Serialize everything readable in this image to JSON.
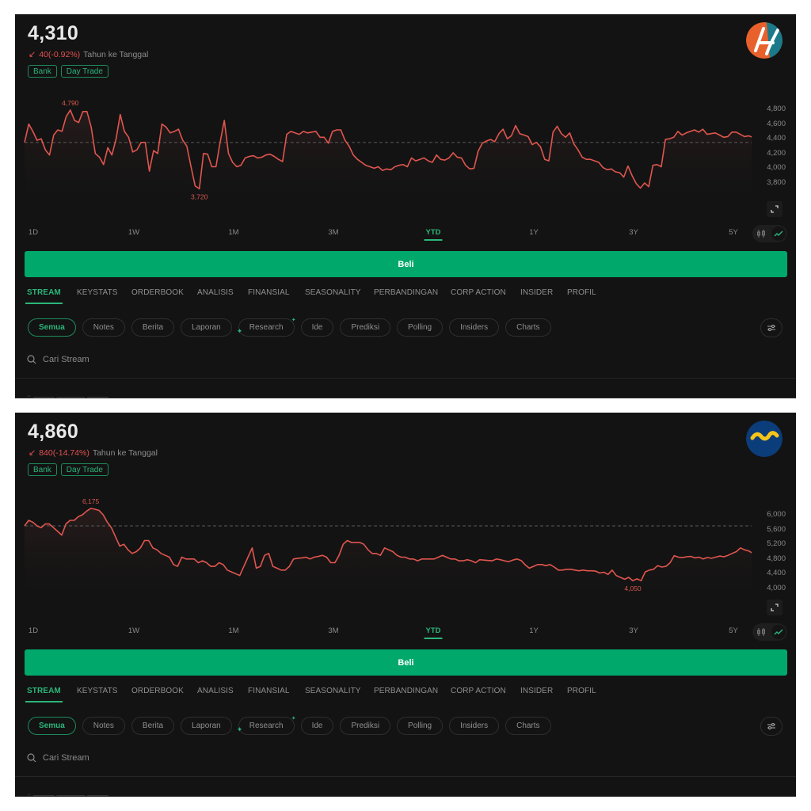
{
  "panels": [
    {
      "price": "4,310",
      "change_arrow": "↙",
      "change": "40(-0.92%)",
      "period_label": "Tahun ke Tanggal",
      "tags": [
        "Bank",
        "Day Trade"
      ],
      "logo": "orange-teal-basket-logo",
      "y_ticks": [
        "4,800",
        "4,600",
        "4,400",
        "4,200",
        "4,000",
        "3,800"
      ],
      "high_label": "4,790",
      "low_label": "3,720",
      "ranges": [
        "1D",
        "1W",
        "1M",
        "3M",
        "YTD",
        "1Y",
        "3Y",
        "5Y"
      ],
      "active_range": "YTD",
      "buy_label": "Beli",
      "tabs": [
        "STREAM",
        "KEYSTATS",
        "ORDERBOOK",
        "ANALISIS",
        "FINANSIAL",
        "SEASONALITY",
        "PERBANDINGAN",
        "CORP ACTION",
        "INSIDER",
        "PROFIL"
      ],
      "active_tab": "STREAM",
      "filters": [
        "Semua",
        "Notes",
        "Berita",
        "Laporan",
        "Research",
        "Ide",
        "Prediksi",
        "Polling",
        "Insiders",
        "Charts"
      ],
      "active_filter": "Semua",
      "search_placeholder": "Cari Stream"
    },
    {
      "price": "4,860",
      "change_arrow": "↙",
      "change": "840(-14.74%)",
      "period_label": "Tahun ke Tanggal",
      "tags": [
        "Bank",
        "Day Trade"
      ],
      "logo": "blue-yellow-wave-logo",
      "y_ticks": [
        "6,000",
        "5,600",
        "5,200",
        "4,800",
        "4,400",
        "4,000"
      ],
      "high_label": "6,175",
      "low_label": "4,050",
      "ranges": [
        "1D",
        "1W",
        "1M",
        "3M",
        "YTD",
        "1Y",
        "3Y",
        "5Y"
      ],
      "active_range": "YTD",
      "buy_label": "Beli",
      "tabs": [
        "STREAM",
        "KEYSTATS",
        "ORDERBOOK",
        "ANALISIS",
        "FINANSIAL",
        "SEASONALITY",
        "PERBANDINGAN",
        "CORP ACTION",
        "INSIDER",
        "PROFIL"
      ],
      "active_tab": "STREAM",
      "filters": [
        "Semua",
        "Notes",
        "Berita",
        "Laporan",
        "Research",
        "Ide",
        "Prediksi",
        "Polling",
        "Insiders",
        "Charts"
      ],
      "active_filter": "Semua",
      "search_placeholder": "Cari Stream"
    }
  ],
  "colors": {
    "accent_green": "#00a86b",
    "text_green": "#2bb57a",
    "line_red": "#e0564e",
    "background": "#131313"
  },
  "chart_data": [
    {
      "type": "line",
      "title": "YTD price",
      "ylim": [
        3700,
        4900
      ],
      "y_ticks": [
        3800,
        4000,
        4200,
        4400,
        4600,
        4800
      ],
      "reference_line": 4350,
      "high": 4790,
      "low": 3720,
      "x_labels": [
        "1D",
        "1W",
        "1M",
        "3M",
        "YTD",
        "1Y",
        "3Y",
        "5Y"
      ],
      "values": [
        4350,
        4600,
        4500,
        4380,
        4400,
        4250,
        4180,
        4450,
        4520,
        4500,
        4700,
        4790,
        4650,
        4620,
        4770,
        4770,
        4560,
        4200,
        4150,
        4050,
        4280,
        4180,
        4400,
        4730,
        4500,
        4420,
        4220,
        4250,
        4350,
        4350,
        3960,
        4240,
        4200,
        4600,
        4560,
        4480,
        4500,
        4530,
        4380,
        4300,
        4020,
        3760,
        3720,
        4200,
        4190,
        4020,
        4020,
        4350,
        4650,
        4200,
        4080,
        4020,
        4040,
        4140,
        4160,
        4170,
        4140,
        4150,
        4180,
        4190,
        4160,
        4120,
        4090,
        4460,
        4500,
        4480,
        4460,
        4500,
        4480,
        4490,
        4500,
        4420,
        4420,
        4340,
        4500,
        4520,
        4520,
        4380,
        4300,
        4180,
        4120,
        4080,
        4040,
        4020,
        4000,
        4020,
        3970,
        3990,
        3980,
        4020,
        4040,
        4050,
        4020,
        4140,
        4100,
        4120,
        4140,
        4100,
        4080,
        4180,
        4120,
        4110,
        4140,
        4210,
        4150,
        4140,
        4040,
        3990,
        4000,
        4230,
        4340,
        4370,
        4390,
        4360,
        4470,
        4530,
        4400,
        4440,
        4580,
        4470,
        4450,
        4430,
        4320,
        4350,
        4290,
        4120,
        4100,
        4490,
        4570,
        4470,
        4420,
        4480,
        4330,
        4250,
        4150,
        4120,
        4120,
        4100,
        4080,
        4010,
        3980,
        3990,
        3950,
        3940,
        3880,
        4030,
        3900,
        3790,
        3730,
        3800,
        3750,
        4040,
        4050,
        4020,
        4390,
        4400,
        4420,
        4500,
        4450,
        4480,
        4500,
        4520,
        4490,
        4530,
        4460,
        4470,
        4480,
        4450,
        4420,
        4430,
        4490,
        4490,
        4460,
        4430,
        4440,
        4420,
        4330,
        4310
      ]
    },
    {
      "type": "line",
      "title": "YTD price",
      "ylim": [
        3900,
        6300
      ],
      "y_ticks": [
        4000,
        4400,
        4800,
        5200,
        5600,
        6000
      ],
      "reference_line": 5700,
      "high": 6175,
      "low": 4050,
      "x_labels": [
        "1D",
        "1W",
        "1M",
        "3M",
        "YTD",
        "1Y",
        "3Y",
        "5Y"
      ],
      "values": [
        5700,
        5850,
        5800,
        5700,
        5650,
        5750,
        5750,
        5650,
        5550,
        5450,
        5750,
        5850,
        5850,
        5950,
        6000,
        6100,
        6175,
        6150,
        6120,
        6000,
        5800,
        5650,
        5400,
        5150,
        5200,
        5050,
        4950,
        5000,
        5100,
        5300,
        5300,
        5100,
        5050,
        4950,
        4900,
        4850,
        4650,
        4600,
        4850,
        4800,
        4800,
        4800,
        4700,
        4750,
        4700,
        4600,
        4600,
        4700,
        4650,
        4500,
        4450,
        4400,
        4350,
        4600,
        4850,
        5100,
        4550,
        4600,
        4900,
        4950,
        4600,
        4550,
        4500,
        4500,
        4600,
        4800,
        4820,
        4830,
        4850,
        4800,
        4850,
        4870,
        4900,
        4850,
        4700,
        4700,
        4900,
        5200,
        5300,
        5250,
        5250,
        5250,
        5200,
        5050,
        4950,
        4950,
        4900,
        5100,
        5050,
        5000,
        4900,
        4850,
        4850,
        4800,
        4800,
        4750,
        4800,
        4800,
        4800,
        4800,
        4850,
        4900,
        4850,
        4800,
        4800,
        4750,
        4750,
        4780,
        4750,
        4700,
        4780,
        4770,
        4760,
        4750,
        4800,
        4780,
        4750,
        4730,
        4770,
        4800,
        4760,
        4640,
        4550,
        4600,
        4650,
        4650,
        4620,
        4650,
        4580,
        4500,
        4500,
        4520,
        4520,
        4500,
        4480,
        4500,
        4480,
        4480,
        4470,
        4420,
        4440,
        4380,
        4500,
        4350,
        4300,
        4250,
        4300,
        4210,
        4260,
        4210,
        4450,
        4500,
        4520,
        4620,
        4580,
        4600,
        4700,
        4890,
        4850,
        4840,
        4860,
        4870,
        4830,
        4850,
        4800,
        4840,
        4820,
        4850,
        4880,
        4860,
        4900,
        4950,
        5000,
        5100,
        5050,
        5020,
        4950,
        4850,
        4860
      ]
    }
  ]
}
